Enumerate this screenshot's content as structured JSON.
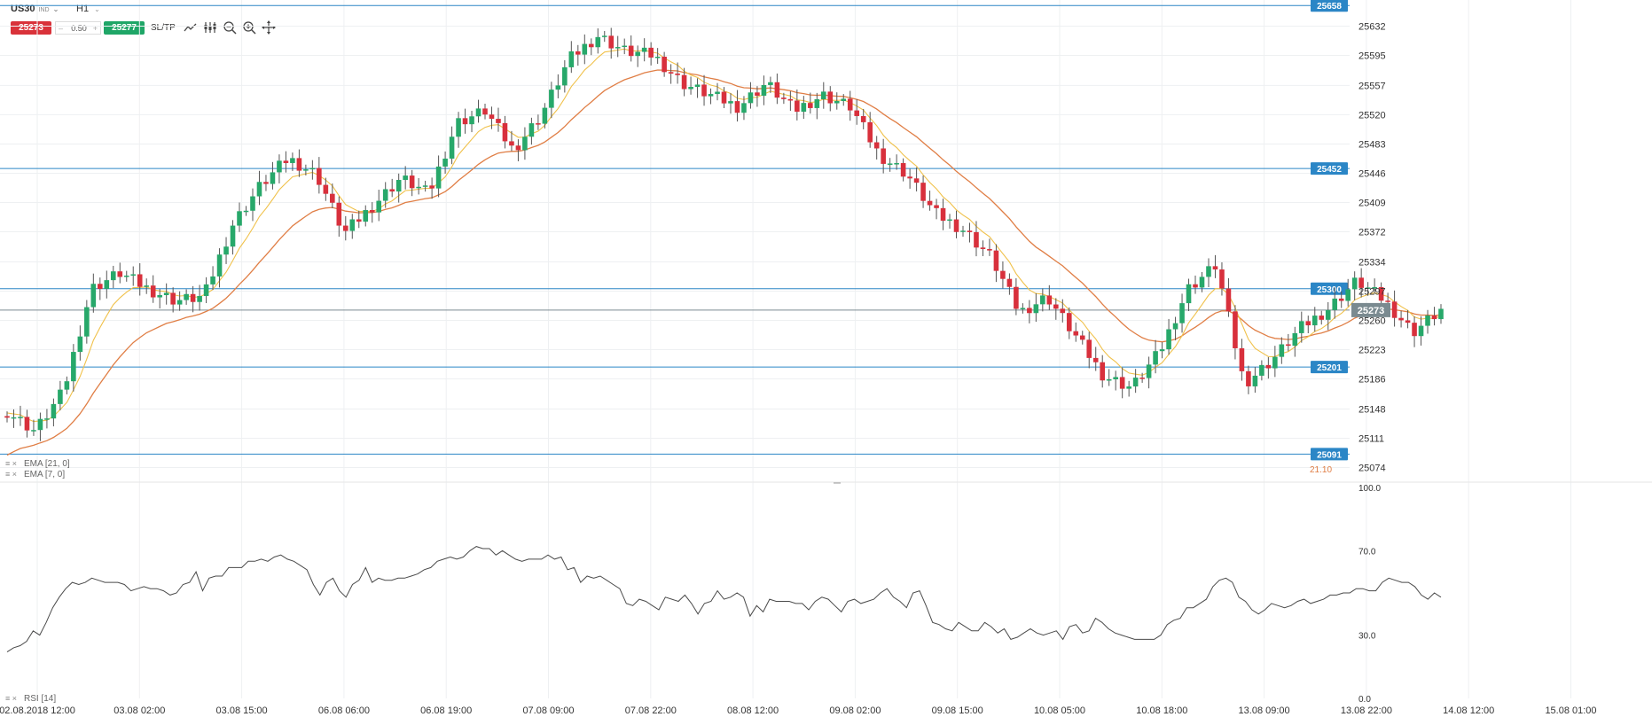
{
  "toolbar": {
    "symbol": "US30",
    "symbol_tag": "IND",
    "timeframe": "H1",
    "sell_price": "25273",
    "quantity": "0.50",
    "buy_price": "25277",
    "sltp_label": "SL/TP",
    "minus_label": "–",
    "plus_label": "+"
  },
  "indicators": {
    "ema21_label": "EMA [21, 0]",
    "ema7_label": "EMA [7, 0]",
    "rsi_label": "RSI [14]",
    "ema21_value_fragment": "21.10"
  },
  "colors": {
    "bull": "#27a86a",
    "bear": "#d8303c",
    "ema21": "#e07e45",
    "ema7": "#f0c14a",
    "hline": "#2b86c6",
    "current": "#7a8a90",
    "rsi": "#4a4a4a"
  },
  "chart_data": [
    {
      "type": "candlestick",
      "title": "US30 H1",
      "timeframe": "H1",
      "ylim": [
        25060,
        25665
      ],
      "y_ticks": [
        "25632",
        "25595",
        "25557",
        "25520",
        "25483",
        "25446",
        "25409",
        "25372",
        "25334",
        "25297",
        "25260",
        "25223",
        "25186",
        "25148",
        "25111",
        "25074"
      ],
      "x_tick_labels": [
        "02.08.2018 12:00",
        "03.08 02:00",
        "03.08 15:00",
        "06.08 06:00",
        "06.08 19:00",
        "07.08 09:00",
        "07.08 22:00",
        "08.08 12:00",
        "09.08 02:00",
        "09.08 15:00",
        "10.08 05:00",
        "10.08 18:00",
        "13.08 09:00",
        "13.08 22:00",
        "14.08 12:00",
        "15.08 01:00"
      ],
      "horizontal_lines": [
        {
          "value": 25658,
          "label": "25658"
        },
        {
          "value": 25452,
          "label": "25452"
        },
        {
          "value": 25300,
          "label": "25300"
        },
        {
          "value": 25201,
          "label": "25201"
        },
        {
          "value": 25091,
          "label": "25091"
        }
      ],
      "current_price": {
        "value": 25273,
        "label": "25273"
      },
      "grid": true,
      "series": [
        {
          "name": "EMA [21, 0]",
          "color": "#e07e45"
        },
        {
          "name": "EMA [7, 0]",
          "color": "#f0c14a"
        }
      ],
      "keypoints": [
        25145,
        25120,
        25170,
        25300,
        25320,
        25300,
        25285,
        25290,
        25380,
        25430,
        25465,
        25445,
        25370,
        25405,
        25440,
        25420,
        25510,
        25525,
        25475,
        25520,
        25590,
        25620,
        25600,
        25595,
        25560,
        25545,
        25530,
        25560,
        25525,
        25545,
        25530,
        25470,
        25445,
        25395,
        25375,
        25340,
        25270,
        25290,
        25240,
        25190,
        25175,
        25220,
        25300,
        25330,
        25180,
        25210,
        25250,
        25275,
        25310,
        25285,
        25245,
        25273
      ],
      "rsi": {
        "name": "RSI [14]",
        "ylim": [
          0,
          100
        ],
        "y_ticks": [
          "100.0",
          "70.0",
          "30.0",
          "0.0"
        ],
        "values": [
          22,
          24,
          25,
          27,
          32,
          30,
          36,
          43,
          48,
          52,
          55,
          54,
          55,
          57,
          56,
          55,
          55,
          55,
          54,
          51,
          52,
          53,
          52,
          52,
          51,
          49,
          50,
          54,
          55,
          60,
          51,
          57,
          58,
          58,
          62,
          62,
          62,
          65,
          65,
          66,
          65,
          67,
          68,
          66,
          65,
          63,
          61,
          54,
          49,
          55,
          57,
          51,
          48,
          54,
          56,
          62,
          55,
          57,
          56,
          56,
          57,
          57,
          58,
          59,
          61,
          62,
          65,
          66,
          67,
          66,
          67,
          70,
          72,
          71,
          71,
          68,
          70,
          68,
          66,
          65,
          66,
          66,
          66,
          68,
          66,
          67,
          61,
          62,
          55,
          58,
          57,
          58,
          56,
          54,
          52,
          45,
          44,
          47,
          46,
          44,
          42,
          48,
          47,
          46,
          49,
          45,
          40,
          45,
          46,
          51,
          47,
          48,
          50,
          48,
          39,
          44,
          41,
          47,
          46,
          46,
          46,
          45,
          45,
          42,
          46,
          48,
          47,
          44,
          41,
          46,
          47,
          45,
          46,
          47,
          50,
          52,
          48,
          46,
          43,
          50,
          51,
          44,
          36,
          35,
          33,
          32,
          36,
          34,
          32,
          32,
          36,
          34,
          31,
          33,
          28,
          29,
          31,
          33,
          31,
          30,
          31,
          32,
          28,
          34,
          35,
          31,
          32,
          38,
          36,
          33,
          31,
          30,
          29,
          28,
          28,
          28,
          28,
          30,
          35,
          37,
          38,
          43,
          43,
          45,
          47,
          53,
          56,
          57,
          55,
          48,
          46,
          42,
          40,
          42,
          45,
          44,
          43,
          44,
          46,
          47,
          45,
          46,
          47,
          49,
          49,
          50,
          50,
          52,
          52,
          51,
          51,
          55,
          57,
          56,
          55,
          55,
          53,
          49,
          47,
          50,
          48
        ]
      }
    }
  ]
}
